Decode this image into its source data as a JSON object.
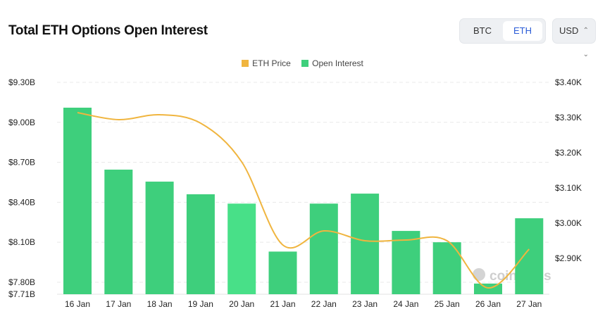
{
  "header": {
    "title": "Total ETH Options Open Interest"
  },
  "asset_toggle": {
    "options": [
      "BTC",
      "ETH"
    ],
    "selected": "ETH"
  },
  "currency_select": {
    "value": "USD"
  },
  "watermark": "coinglass",
  "colors": {
    "price": "#f0b53f",
    "oi": "#3ecf7c",
    "oi_highlight": "#48e088"
  },
  "chart_data": {
    "type": "bar+line",
    "title": "Total ETH Options Open Interest",
    "legend": [
      {
        "name": "ETH Price",
        "color": "#f0b53f"
      },
      {
        "name": "Open Interest",
        "color": "#3ecf7c"
      }
    ],
    "legend_position": "top-center",
    "categories": [
      "16 Jan",
      "17 Jan",
      "18 Jan",
      "19 Jan",
      "20 Jan",
      "21 Jan",
      "22 Jan",
      "23 Jan",
      "24 Jan",
      "25 Jan",
      "26 Jan",
      "27 Jan"
    ],
    "series": [
      {
        "name": "Open Interest",
        "type": "bar",
        "axis": "left",
        "unit": "B USD",
        "values": [
          9.11,
          8.645,
          8.555,
          8.46,
          8.39,
          8.03,
          8.39,
          8.465,
          8.185,
          8.1,
          7.79,
          8.28
        ]
      },
      {
        "name": "ETH Price",
        "type": "line",
        "axis": "right",
        "unit": "K USD",
        "values": [
          3.314,
          3.294,
          3.308,
          3.284,
          3.174,
          2.938,
          2.978,
          2.95,
          2.952,
          2.95,
          2.816,
          2.926
        ]
      }
    ],
    "left_axis": {
      "ticks": [
        "$9.30B",
        "$9.00B",
        "$8.70B",
        "$8.40B",
        "$8.10B",
        "$7.80B",
        "$7.71B"
      ],
      "tick_values": [
        9.3,
        9.0,
        8.7,
        8.4,
        8.1,
        7.8,
        7.71
      ],
      "range": [
        7.71,
        9.3
      ]
    },
    "right_axis": {
      "ticks": [
        "$3.40K",
        "$3.30K",
        "$3.20K",
        "$3.10K",
        "$3.00K",
        "$2.90K"
      ],
      "tick_values": [
        3.4,
        3.3,
        3.2,
        3.1,
        3.0,
        2.9
      ],
      "range": [
        2.798,
        3.4
      ]
    },
    "grid": true,
    "highlighted_category": "20 Jan"
  }
}
